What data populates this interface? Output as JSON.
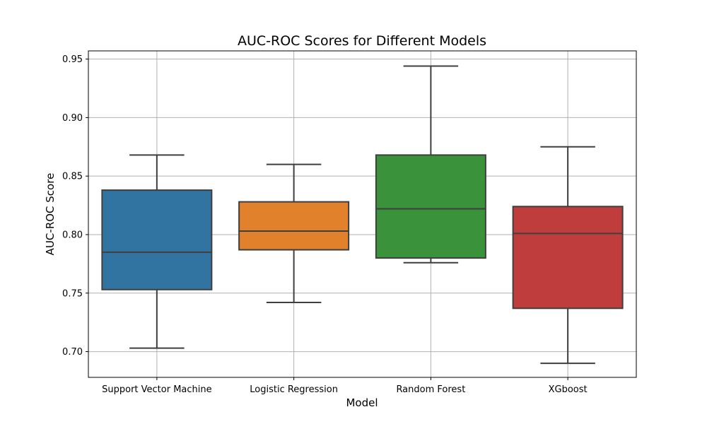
{
  "chart_data": {
    "type": "box",
    "title": "AUC-ROC Scores for Different Models",
    "xlabel": "Model",
    "ylabel": "AUC-ROC Score",
    "ylim": [
      0.678,
      0.957
    ],
    "yticks": [
      0.7,
      0.75,
      0.8,
      0.85,
      0.9,
      0.95
    ],
    "ytick_labels": [
      "0.70",
      "0.75",
      "0.80",
      "0.85",
      "0.90",
      "0.95"
    ],
    "grid": true,
    "categories": [
      "Support Vector Machine",
      "Logistic Regression",
      "Random Forest",
      "XGboost"
    ],
    "boxes": [
      {
        "category": "Support Vector Machine",
        "whisker_low": 0.703,
        "q1": 0.753,
        "median": 0.785,
        "q3": 0.838,
        "whisker_high": 0.868,
        "color": "#3274a1"
      },
      {
        "category": "Logistic Regression",
        "whisker_low": 0.742,
        "q1": 0.787,
        "median": 0.803,
        "q3": 0.828,
        "whisker_high": 0.86,
        "color": "#e1812c"
      },
      {
        "category": "Random Forest",
        "whisker_low": 0.776,
        "q1": 0.78,
        "median": 0.822,
        "q3": 0.868,
        "whisker_high": 0.944,
        "color": "#3a923a"
      },
      {
        "category": "XGboost",
        "whisker_low": 0.69,
        "q1": 0.737,
        "median": 0.801,
        "q3": 0.824,
        "whisker_high": 0.875,
        "color": "#c03d3e"
      }
    ]
  }
}
